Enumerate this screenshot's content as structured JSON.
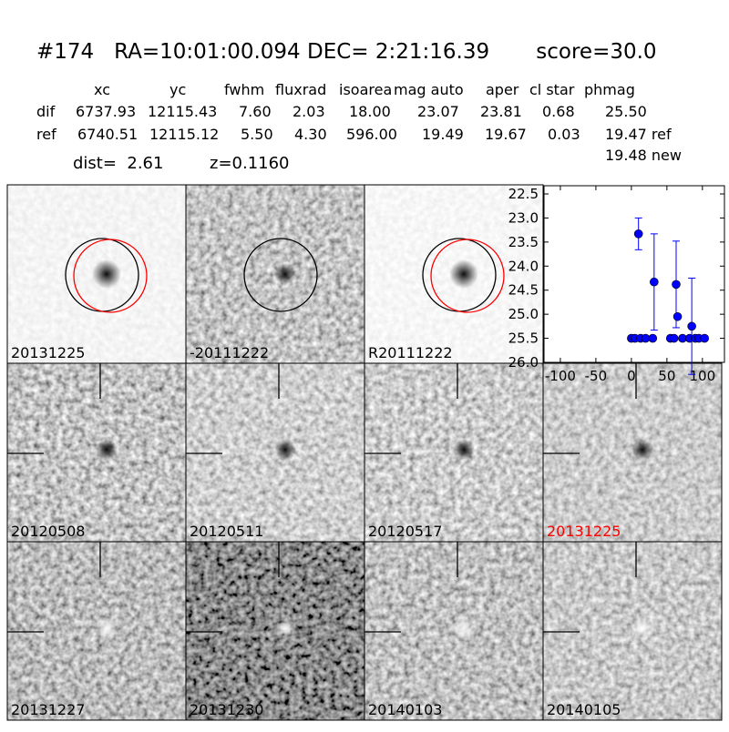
{
  "header": {
    "title": "#174   RA=10:01:00.094 DEC= 2:21:16.39       score=30.0"
  },
  "table": {
    "columns": [
      "xc",
      "yc",
      "fwhm",
      "fluxrad",
      "isoarea",
      "mag auto",
      "aper",
      "cl star",
      "phmag"
    ],
    "rows": [
      [
        "dif",
        "6737.93",
        "12115.43",
        "7.60",
        "2.03",
        "18.00",
        "23.07",
        "23.81",
        "0.68",
        "25.50"
      ],
      [
        "ref",
        "6740.51",
        "12115.12",
        "5.50",
        "4.30",
        "596.00",
        "19.49",
        "19.67",
        "0.03",
        "19.47 ref"
      ]
    ],
    "extra": "19.48 new"
  },
  "dist": "dist=  2.61",
  "z": "z=0.1160",
  "panels": [
    {
      "label": "20131225"
    },
    {
      "label": "-20111222"
    },
    {
      "label": "R20111222"
    },
    {
      "label": "20120508"
    },
    {
      "label": "20120511"
    },
    {
      "label": "20120517"
    },
    {
      "label": "20131225",
      "color": "#ff0000"
    },
    {
      "label": "20131227"
    },
    {
      "label": "20131230"
    },
    {
      "label": "20140103"
    },
    {
      "label": "20140105"
    }
  ],
  "chart_data": {
    "type": "errorbar",
    "color": "#0000ff",
    "x": [
      0,
      5,
      10,
      13,
      20,
      30,
      32,
      55,
      60,
      63,
      65,
      72,
      82,
      85,
      90,
      95,
      103
    ],
    "values": [
      25.5,
      25.5,
      23.33,
      25.5,
      25.5,
      25.5,
      24.33,
      25.5,
      25.5,
      24.38,
      25.05,
      25.5,
      25.5,
      25.25,
      25.5,
      25.5,
      25.5
    ],
    "errors": [
      null,
      null,
      0.33,
      null,
      null,
      null,
      1.0,
      null,
      null,
      0.9,
      null,
      null,
      null,
      1.0,
      null,
      null,
      null
    ],
    "xlim": [
      -123,
      131
    ],
    "ylim": [
      26.0,
      22.33
    ],
    "xticks": [
      -100,
      -50,
      0,
      50,
      100
    ],
    "yticks": [
      22.5,
      {
        "value": 23,
        "label": "23.0"
      },
      23.5,
      {
        "value": 24,
        "label": "24.0"
      },
      24.5,
      {
        "value": 25,
        "label": "25.0"
      },
      25.5,
      {
        "value": 26,
        "label": "26.0"
      }
    ]
  }
}
